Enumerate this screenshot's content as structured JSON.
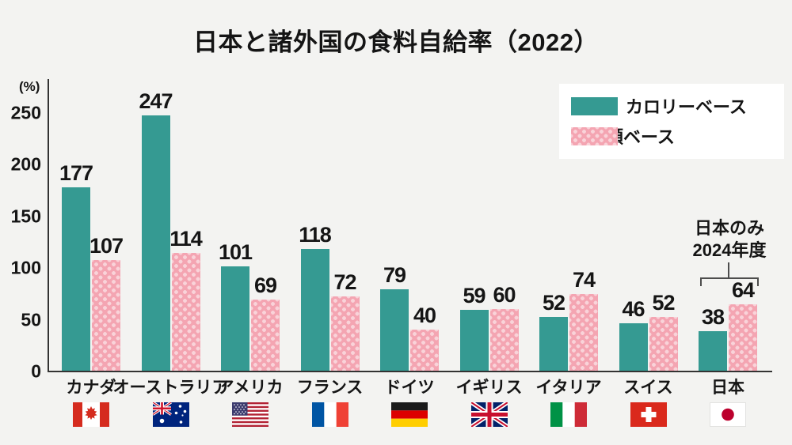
{
  "title": "日本と諸外国の食料自給率（2022）",
  "y_axis": {
    "unit": "(%)"
  },
  "annotation": {
    "line1": "日本のみ",
    "line2": "2024年度"
  },
  "colors": {
    "calorie_base": "#359a92",
    "production_base": "#f4a5b2",
    "production_dot": "#f9d3d9",
    "background": "#f3f3f1",
    "text": "#151515",
    "axis": "#333333"
  },
  "chart_data": {
    "type": "bar",
    "title": "日本と諸外国の食料自給率（2022）",
    "ylabel": "(%)",
    "ylim": [
      0,
      250
    ],
    "yticks": [
      0,
      50,
      100,
      150,
      200,
      250
    ],
    "grid": false,
    "legend_position": "top-right",
    "categories": [
      "カナダ",
      "オーストラリア",
      "アメリカ",
      "フランス",
      "ドイツ",
      "イギリス",
      "イタリア",
      "スイス",
      "日本"
    ],
    "flags": [
      "ca",
      "au",
      "us",
      "fr",
      "de",
      "gb",
      "it",
      "ch",
      "jp"
    ],
    "series": [
      {
        "name": "カロリーベース",
        "color": "#359a92",
        "pattern": "solid",
        "values": [
          177,
          247,
          101,
          118,
          79,
          59,
          52,
          46,
          38
        ]
      },
      {
        "name": "生産額ベース",
        "color": "#f4a5b2",
        "pattern": "polka-dot",
        "values": [
          107,
          114,
          69,
          72,
          40,
          60,
          74,
          52,
          64
        ]
      }
    ],
    "annotation": {
      "text": "日本のみ 2024年度",
      "applies_to": "日本"
    }
  }
}
